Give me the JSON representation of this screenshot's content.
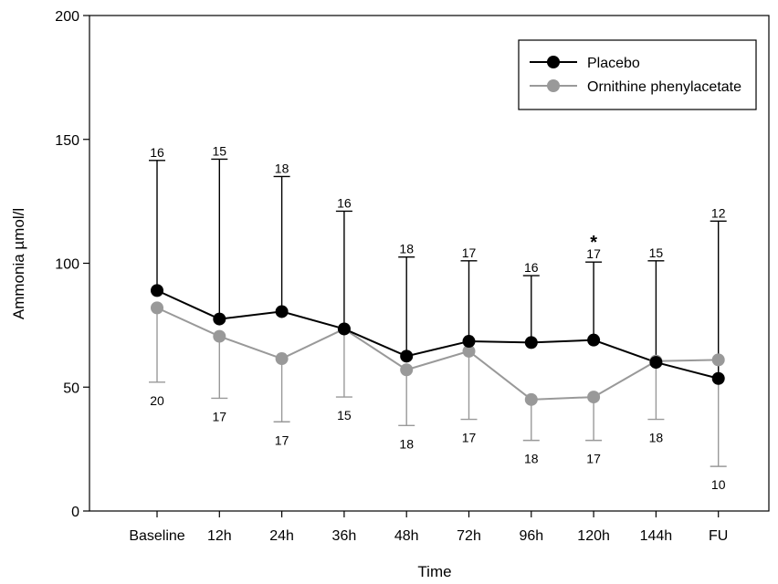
{
  "chart_data": {
    "type": "line",
    "xlabel": "Time",
    "ylabel": "Ammonia µmol/l",
    "ylim": [
      0,
      200
    ],
    "yticks": [
      "0",
      "50",
      "100",
      "150",
      "200"
    ],
    "categories": [
      "Baseline",
      "12h",
      "24h",
      "36h",
      "48h",
      "72h",
      "96h",
      "120h",
      "144h",
      "FU"
    ],
    "legend": {
      "position": "top-right"
    },
    "series": [
      {
        "name": "Placebo",
        "color": "#000000",
        "values": [
          89,
          77.5,
          80.5,
          73.5,
          62.5,
          68.5,
          68,
          69,
          60,
          53.5
        ],
        "error_upper": [
          141.5,
          142,
          135,
          121,
          102.5,
          101,
          95,
          100.5,
          101,
          117
        ],
        "n_labels": [
          "16",
          "15",
          "18",
          "16",
          "18",
          "17",
          "16",
          "17",
          "15",
          "12"
        ]
      },
      {
        "name": "Ornithine phenylacetate",
        "color": "#999999",
        "values": [
          82,
          70.5,
          61.5,
          73.5,
          57,
          64.5,
          45,
          46,
          60.5,
          61
        ],
        "error_lower": [
          52,
          45.5,
          36,
          46,
          34.5,
          37,
          28.5,
          28.5,
          37,
          18
        ],
        "n_labels": [
          "20",
          "17",
          "17",
          "15",
          "18",
          "17",
          "18",
          "17",
          "18",
          "10"
        ]
      }
    ],
    "annotations": [
      {
        "text": "*",
        "category": "120h"
      }
    ]
  }
}
